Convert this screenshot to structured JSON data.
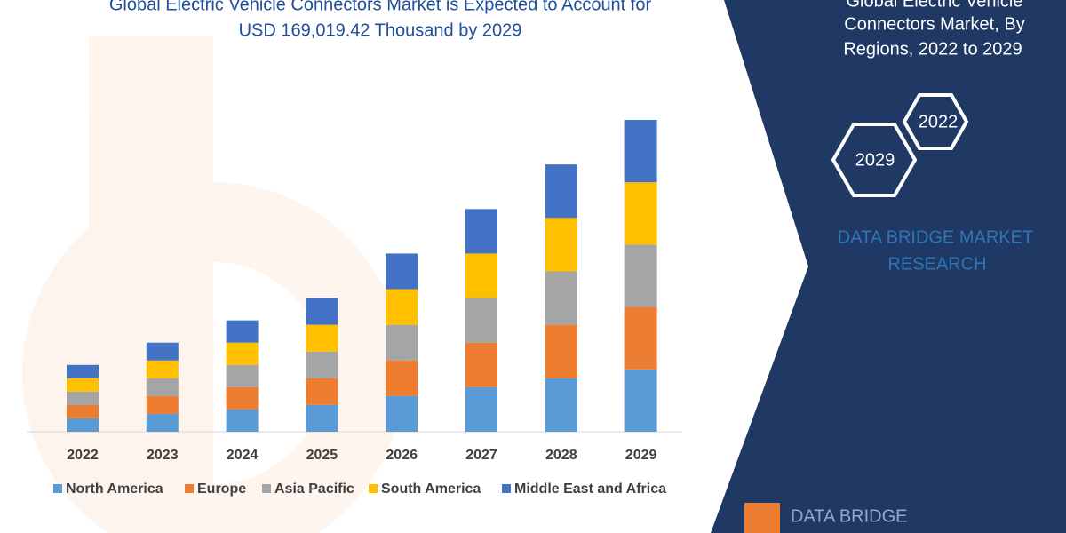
{
  "chart_data": {
    "type": "stacked-bar",
    "title": [
      "Global Electric Vehicle Connectors Market is Expected to Account for",
      "USD 169,019.42 Thousand by 2029"
    ],
    "categories": [
      "2022",
      "2023",
      "2024",
      "2025",
      "2026",
      "2027",
      "2028",
      "2029"
    ],
    "series": [
      {
        "name": "North America",
        "color": "#5b9bd5",
        "values": [
          15,
          20,
          25,
          30,
          40,
          50,
          60,
          70
        ]
      },
      {
        "name": "Europe",
        "color": "#ed7d31",
        "values": [
          15,
          20,
          25,
          30,
          40,
          50,
          60,
          70
        ]
      },
      {
        "name": "Asia Pacific",
        "color": "#a5a5a5",
        "values": [
          15,
          20,
          25,
          30,
          40,
          50,
          60,
          70
        ]
      },
      {
        "name": "South America",
        "color": "#ffc000",
        "values": [
          15,
          20,
          25,
          30,
          40,
          50,
          60,
          70
        ]
      },
      {
        "name": "Middle East and Africa",
        "color": "#4472c4",
        "values": [
          15,
          20,
          25,
          30,
          40,
          50,
          60,
          70
        ]
      }
    ]
  },
  "panel": {
    "heading": [
      "Global Electric Vehicle",
      "Connectors Market, By",
      "Regions, 2022 to 2029"
    ],
    "hex_labels": [
      "2022",
      "2029"
    ],
    "brand": [
      "DATA BRIDGE MARKET",
      "RESEARCH"
    ],
    "logo": "DATA BRIDGE"
  }
}
